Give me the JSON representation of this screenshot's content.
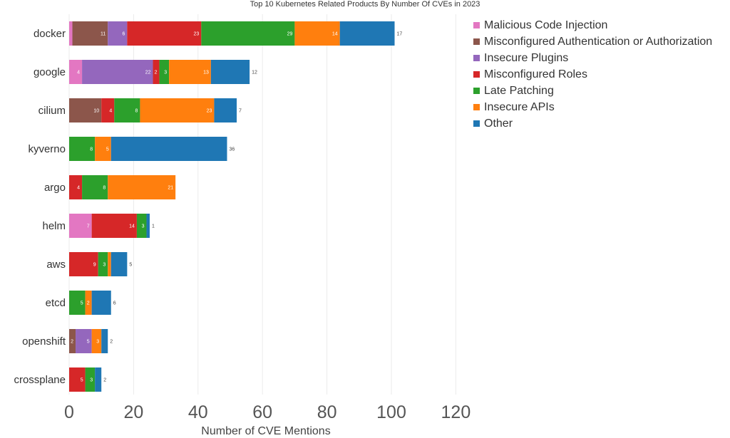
{
  "chart_data": {
    "type": "bar",
    "orientation": "horizontal",
    "stacked": true,
    "title": "Top 10 Kubernetes Related Products By Number Of CVEs in 2023",
    "xlabel": "Number of CVE Mentions",
    "ylabel": "",
    "xlim": [
      0,
      120
    ],
    "xticks": [
      0,
      20,
      40,
      60,
      80,
      100,
      120
    ],
    "grid": true,
    "legend_position": "top-right",
    "categories": [
      "docker",
      "google",
      "cilium",
      "kyverno",
      "argo",
      "helm",
      "aws",
      "etcd",
      "openshift",
      "crossplane"
    ],
    "series": [
      {
        "name": "Malicious Code Injection",
        "color": "#e377c2",
        "values": [
          1,
          4,
          0,
          0,
          0,
          7,
          0,
          0,
          0,
          0
        ],
        "labels": [
          "",
          "4",
          "",
          "",
          "",
          "7",
          "",
          "",
          "",
          ""
        ]
      },
      {
        "name": "Misconfigured Authentication or Authorization",
        "color": "#8c564b",
        "values": [
          11,
          0,
          10,
          0,
          0,
          0,
          0,
          0,
          2,
          0
        ],
        "labels": [
          "11",
          "",
          "10",
          "",
          "",
          "",
          "",
          "",
          "2",
          ""
        ]
      },
      {
        "name": "Insecure Plugins",
        "color": "#9467bd",
        "values": [
          6,
          22,
          0,
          0,
          0,
          0,
          0,
          0,
          5,
          0
        ],
        "labels": [
          "6",
          "22",
          "",
          "",
          "",
          "",
          "",
          "",
          "5",
          ""
        ]
      },
      {
        "name": "Misconfigured Roles",
        "color": "#d62728",
        "values": [
          23,
          2,
          4,
          0,
          4,
          14,
          9,
          0,
          0,
          5
        ],
        "labels": [
          "23",
          "2",
          "4",
          "",
          "4",
          "14",
          "9",
          "",
          "",
          "5"
        ]
      },
      {
        "name": "Late Patching",
        "color": "#2ca02c",
        "values": [
          29,
          3,
          8,
          8,
          8,
          3,
          3,
          5,
          0,
          3
        ],
        "labels": [
          "29",
          "3",
          "8",
          "8",
          "8",
          "3",
          "3",
          "5",
          "",
          "3"
        ]
      },
      {
        "name": "Insecure APIs",
        "color": "#ff7f0e",
        "values": [
          14,
          13,
          23,
          5,
          21,
          0,
          1,
          2,
          3,
          0
        ],
        "labels": [
          "14",
          "13",
          "23",
          "5",
          "21",
          "",
          "",
          "2",
          "3",
          ""
        ]
      },
      {
        "name": "Other",
        "color": "#1f77b4",
        "values": [
          17,
          12,
          7,
          36,
          0,
          1,
          5,
          6,
          2,
          2
        ],
        "labels": [
          "17",
          "12",
          "7",
          "36",
          "",
          "1",
          "5",
          "6",
          "2",
          "2"
        ]
      }
    ]
  }
}
